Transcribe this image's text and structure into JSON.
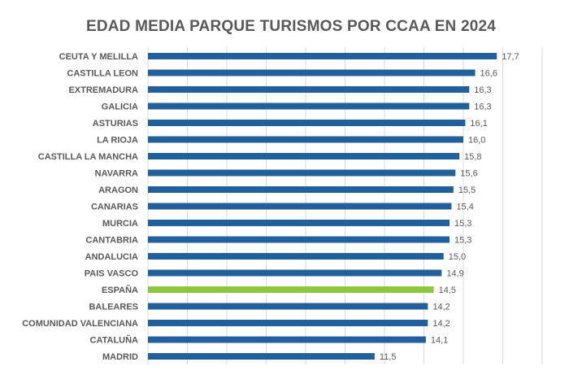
{
  "chart_data": {
    "type": "bar",
    "orientation": "horizontal",
    "title": "EDAD MEDIA PARQUE TURISMOS POR CCAA EN 2024",
    "categories": [
      "CEUTA Y MELILLA",
      "CASTILLA LEON",
      "EXTREMADURA",
      "GALICIA",
      "ASTURIAS",
      "LA RIOJA",
      "CASTILLA LA MANCHA",
      "NAVARRA",
      "ARAGON",
      "CANARIAS",
      "MURCIA",
      "CANTABRIA",
      "ANDALUCIA",
      "PAIS VASCO",
      "ESPAÑA",
      "BALEARES",
      "COMUNIDAD VALENCIANA",
      "CATALUÑA",
      "MADRID"
    ],
    "values": [
      17.7,
      16.6,
      16.3,
      16.3,
      16.1,
      16.0,
      15.8,
      15.6,
      15.5,
      15.4,
      15.3,
      15.3,
      15.0,
      14.9,
      14.5,
      14.2,
      14.2,
      14.1,
      11.5
    ],
    "value_labels": [
      "17,7",
      "16,6",
      "16,3",
      "16,3",
      "16,1",
      "16,0",
      "15,8",
      "15,6",
      "15,5",
      "15,4",
      "15,3",
      "15,3",
      "15,0",
      "14,9",
      "14,5",
      "14,2",
      "14,2",
      "14,1",
      "11,5"
    ],
    "xlim": [
      0,
      20
    ],
    "grid_step": 2,
    "grid": true,
    "x_tick_labels_shown": false,
    "colors": {
      "bar": "#22609c",
      "highlight": "#8dc63f",
      "grid": "#d9d9d9"
    },
    "highlight_category": "ESPAÑA"
  }
}
